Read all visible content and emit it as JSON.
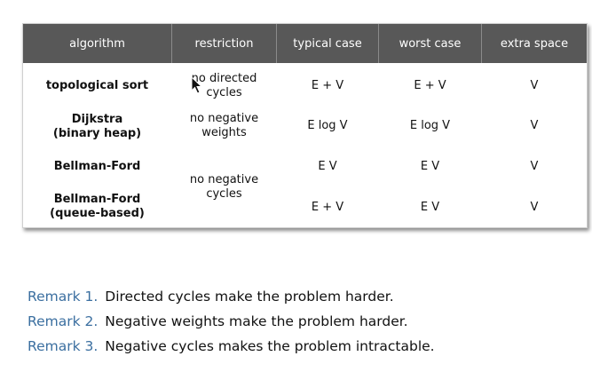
{
  "table": {
    "headers": [
      "algorithm",
      "restriction",
      "typical case",
      "worst case",
      "extra space"
    ],
    "rows": [
      {
        "algorithm": [
          "topological sort"
        ],
        "restriction": [
          "no directed",
          "cycles"
        ],
        "typical": "E + V",
        "worst": "E + V",
        "space": "V"
      },
      {
        "algorithm": [
          "Dijkstra",
          "(binary heap)"
        ],
        "restriction": [
          "no negative",
          "weights"
        ],
        "typical": "E log V",
        "worst": "E log V",
        "space": "V"
      },
      {
        "algorithm": [
          "Bellman-Ford"
        ],
        "restriction": [
          "no negative",
          "cycles"
        ],
        "typical": "E V",
        "worst": "E V",
        "space": "V"
      },
      {
        "algorithm": [
          "Bellman-Ford",
          "(queue-based)"
        ],
        "restriction": [],
        "typical": "E + V",
        "worst": "E V",
        "space": "V"
      }
    ]
  },
  "remarks": [
    {
      "label": "Remark 1.",
      "text": "Directed cycles make the problem harder."
    },
    {
      "label": "Remark 2.",
      "text": "Negative weights make the problem harder."
    },
    {
      "label": "Remark 3.",
      "text": "Negative cycles makes the problem intractable."
    }
  ],
  "colors": {
    "header_bg": "#585858",
    "remark_label": "#3b6fa0"
  },
  "icons": {
    "cursor": "mouse-pointer-icon"
  }
}
